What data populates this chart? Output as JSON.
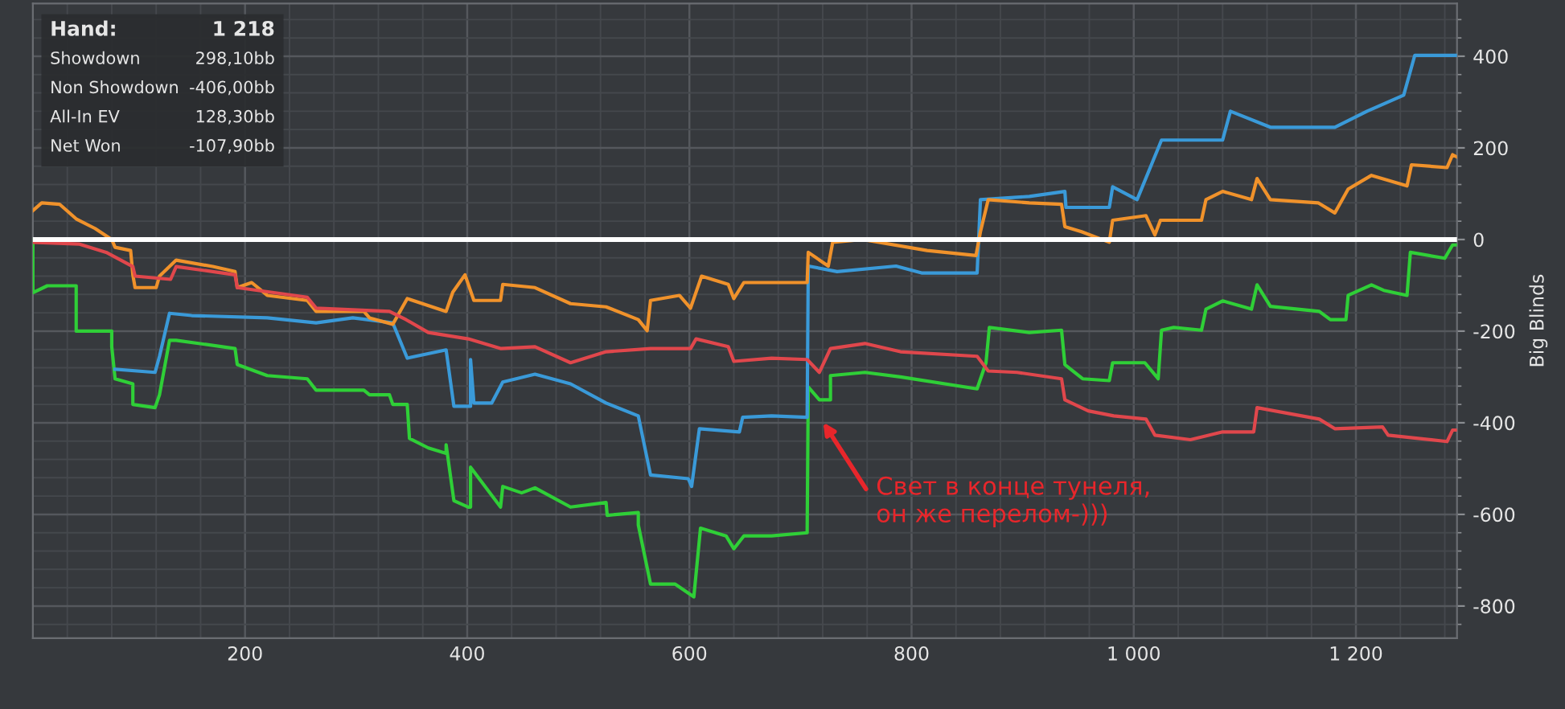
{
  "chart_data": {
    "type": "line",
    "x": [
      9,
      9,
      22,
      48,
      48,
      80,
      80,
      83,
      99,
      99,
      119,
      123,
      132,
      138,
      191,
      193,
      220,
      256,
      264,
      307,
      312,
      330,
      333,
      346,
      348,
      365,
      381,
      381,
      388,
      401,
      403,
      403,
      430,
      432,
      449,
      461,
      493,
      525,
      526,
      554,
      554,
      565,
      587,
      604,
      610,
      633,
      640,
      649,
      674,
      706,
      707,
      717,
      727,
      727,
      758,
      790,
      859,
      867,
      870,
      906,
      935,
      938,
      954,
      978,
      981,
      1010,
      1022,
      1025,
      1036,
      1061,
      1065,
      1080,
      1106,
      1111,
      1123,
      1167,
      1177,
      1191,
      1193,
      1214,
      1225,
      1246,
      1249,
      1280,
      1287,
      1291
    ],
    "series": [
      {
        "color": "#2fcf37",
        "values": [
          0,
          -116,
          -101,
          -101,
          -200,
          -200,
          -234,
          -304,
          -315,
          -360,
          -367,
          -339,
          -220,
          -220,
          -238,
          -273,
          -297,
          -304,
          -329,
          -329,
          -339,
          -339,
          -360,
          -360,
          -434,
          -455,
          -467,
          -448,
          -570,
          -584,
          -584,
          -497,
          -584,
          -539,
          -553,
          -542,
          -584,
          -574,
          -602,
          -596,
          -623,
          -752,
          -752,
          -780,
          -630,
          -647,
          -675,
          -647,
          -647,
          -640,
          -322,
          -350,
          -350,
          -297,
          -290,
          -300,
          -326,
          -269,
          -192,
          -203,
          -198,
          -273,
          -304,
          -308,
          -269,
          -269,
          -304,
          -198,
          -192,
          -198,
          -152,
          -134,
          -152,
          -99,
          -146,
          -157,
          -175,
          -175,
          -122,
          -99,
          -111,
          -122,
          -28,
          -41,
          -12,
          -12
        ]
      },
      {
        "color": "#3a9ad9",
        "x": [
          83,
          119,
          123,
          132,
          152,
          220,
          264,
          297,
          333,
          346,
          381,
          388,
          403,
          403,
          406,
          422,
          432,
          461,
          493,
          525,
          554,
          565,
          599,
          602,
          609,
          645,
          648,
          674,
          706,
          707,
          733,
          786,
          809,
          859,
          862,
          906,
          938,
          939,
          978,
          981,
          1003,
          1025,
          1080,
          1087,
          1123,
          1181,
          1210,
          1243,
          1253,
          1291
        ],
        "values": [
          -283,
          -290,
          -255,
          -161,
          -166,
          -171,
          -182,
          -171,
          -182,
          -259,
          -241,
          -364,
          -364,
          -262,
          -357,
          -357,
          -311,
          -294,
          -315,
          -357,
          -385,
          -514,
          -522,
          -539,
          -413,
          -420,
          -388,
          -385,
          -388,
          -58,
          -70,
          -58,
          -73,
          -73,
          87,
          94,
          105,
          70,
          70,
          115,
          87,
          217,
          217,
          280,
          245,
          245,
          280,
          315,
          402,
          402
        ]
      },
      {
        "color": "#f0922b",
        "x": [
          9,
          17,
          33,
          48,
          65,
          80,
          83,
          97,
          99,
          101,
          120,
          123,
          138,
          171,
          191,
          193,
          206,
          220,
          256,
          264,
          307,
          312,
          333,
          346,
          381,
          387,
          398,
          406,
          430,
          432,
          461,
          493,
          525,
          554,
          562,
          565,
          591,
          601,
          611,
          635,
          640,
          649,
          674,
          706,
          707,
          725,
          729,
          756,
          814,
          858,
          862,
          869,
          906,
          935,
          938,
          953,
          978,
          981,
          1011,
          1019,
          1024,
          1061,
          1065,
          1080,
          1106,
          1111,
          1123,
          1166,
          1181,
          1193,
          1214,
          1246,
          1250,
          1282,
          1287,
          1291
        ],
        "values": [
          63,
          80,
          77,
          45,
          24,
          0,
          -17,
          -24,
          -77,
          -105,
          -105,
          -80,
          -45,
          -59,
          -70,
          -105,
          -94,
          -122,
          -133,
          -157,
          -157,
          -171,
          -185,
          -129,
          -157,
          -115,
          -77,
          -133,
          -133,
          -98,
          -105,
          -140,
          -147,
          -175,
          -199,
          -133,
          -122,
          -150,
          -80,
          -98,
          -129,
          -94,
          -94,
          -94,
          -28,
          -58,
          -6,
          0,
          -24,
          -35,
          17,
          87,
          80,
          77,
          28,
          17,
          -6,
          42,
          52,
          10,
          42,
          42,
          87,
          105,
          87,
          133,
          87,
          80,
          58,
          110,
          140,
          117,
          163,
          157,
          185,
          180
        ]
      },
      {
        "color": "#e0474c",
        "x": [
          9,
          51,
          75,
          99,
          101,
          133,
          138,
          191,
          193,
          256,
          264,
          330,
          345,
          365,
          401,
          430,
          461,
          493,
          525,
          565,
          601,
          606,
          635,
          640,
          674,
          706,
          717,
          727,
          758,
          790,
          859,
          869,
          895,
          935,
          938,
          959,
          982,
          1011,
          1019,
          1051,
          1080,
          1108,
          1111,
          1167,
          1181,
          1224,
          1229,
          1282,
          1287,
          1291
        ],
        "values": [
          -6,
          -10,
          -28,
          -59,
          -80,
          -87,
          -59,
          -77,
          -105,
          -126,
          -150,
          -157,
          -175,
          -203,
          -217,
          -238,
          -234,
          -269,
          -245,
          -238,
          -238,
          -217,
          -234,
          -266,
          -259,
          -262,
          -290,
          -238,
          -227,
          -245,
          -255,
          -287,
          -290,
          -304,
          -350,
          -374,
          -385,
          -392,
          -427,
          -437,
          -420,
          -420,
          -367,
          -392,
          -413,
          -409,
          -427,
          -441,
          -416,
          -416
        ]
      }
    ],
    "xlim": [
      9,
      1291
    ],
    "ylim": [
      -870,
      515
    ],
    "xticks": [
      200,
      400,
      600,
      800,
      {
        "value": 1000,
        "label": "1 000"
      },
      {
        "value": 1200,
        "label": "1 200"
      }
    ],
    "yticks": [
      -800,
      -600,
      -400,
      -200,
      0,
      200,
      400
    ],
    "ylabel": "Big Blinds",
    "grid": true,
    "ref_lines": [
      {
        "axis": "y",
        "value": 0,
        "color": "#ffffff"
      }
    ],
    "annotations": [
      "Hand:",
      "1 218",
      "Showdown",
      "298,10bb",
      "Non Showdown",
      "-406,00bb",
      "All-In EV",
      "128,30bb",
      "Net Won",
      "-107,90bb",
      "Свет в конце тунеля,\nон же перелом-)))"
    ]
  }
}
